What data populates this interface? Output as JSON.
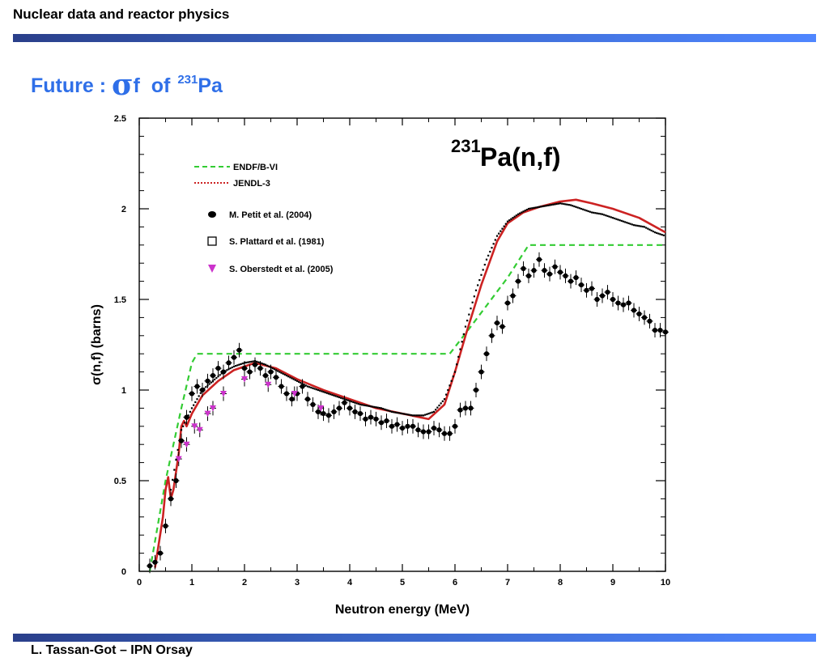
{
  "header": {
    "title": "Nuclear data and reactor physics"
  },
  "slide": {
    "title_prefix": "Future : ",
    "title_sigma": "σ",
    "title_sub": "f",
    "title_of": "of",
    "title_mass": "231",
    "title_element": "Pa"
  },
  "footer": {
    "text": "L. Tassan-Got – IPN Orsay"
  },
  "colors": {
    "band": "#3a66c9",
    "title": "#2f6fe8",
    "endf": "#33cc33",
    "jendl": "#cc2222",
    "oberstedt": "#cc33cc"
  },
  "chart_data": {
    "type": "scatter",
    "annotation": {
      "mass": "231",
      "reaction": "Pa(n,f)"
    },
    "xlabel": "Neutron energy (MeV)",
    "ylabel": "σ(n,f) (barns)",
    "xlim": [
      0,
      10
    ],
    "ylim": [
      0,
      2.5
    ],
    "xticks": [
      0,
      1,
      2,
      3,
      4,
      5,
      6,
      7,
      8,
      9,
      10
    ],
    "yticks": [
      0,
      0.5,
      1,
      1.5,
      2,
      2.5
    ],
    "xtick_labels": [
      "0",
      "1",
      "2",
      "3",
      "4",
      "5",
      "6",
      "7",
      "8",
      "9",
      "10"
    ],
    "ytick_labels": [
      "0",
      "0.5",
      "1",
      "1.5",
      "2",
      "2.5"
    ],
    "legend_position": "top-left",
    "series": [
      {
        "name": "ENDF/B-VI",
        "kind": "dashed-line",
        "color": "#33cc33",
        "x": [
          0.2,
          0.5,
          0.8,
          1.0,
          1.1,
          5.9,
          6.3,
          7.0,
          7.4,
          10.0
        ],
        "y": [
          0.0,
          0.5,
          0.9,
          1.15,
          1.2,
          1.2,
          1.35,
          1.62,
          1.8,
          1.8
        ]
      },
      {
        "name": "JENDL-3",
        "kind": "line",
        "color": "#cc2222",
        "x": [
          0.3,
          0.45,
          0.5,
          0.55,
          0.6,
          0.65,
          0.75,
          0.8,
          0.85,
          0.9,
          1.0,
          1.2,
          1.5,
          1.8,
          2.2,
          2.6,
          3.0,
          3.5,
          4.0,
          4.5,
          5.0,
          5.5,
          5.8,
          6.0,
          6.2,
          6.5,
          6.8,
          7.0,
          7.3,
          7.6,
          8.0,
          8.3,
          8.6,
          9.0,
          9.5,
          10.0
        ],
        "y": [
          0.02,
          0.3,
          0.45,
          0.52,
          0.4,
          0.45,
          0.65,
          0.8,
          0.83,
          0.8,
          0.87,
          0.97,
          1.05,
          1.11,
          1.15,
          1.12,
          1.06,
          1.0,
          0.95,
          0.9,
          0.87,
          0.84,
          0.92,
          1.1,
          1.3,
          1.58,
          1.82,
          1.92,
          1.98,
          2.01,
          2.04,
          2.05,
          2.03,
          2.0,
          1.95,
          1.87
        ]
      },
      {
        "name": "M. Petit et al.  (2004)",
        "kind": "points-with-errorbars",
        "marker": "circle",
        "color": "#000000",
        "x": [
          0.2,
          0.3,
          0.4,
          0.5,
          0.6,
          0.7,
          0.8,
          0.9,
          1.0,
          1.1,
          1.2,
          1.3,
          1.4,
          1.5,
          1.6,
          1.7,
          1.8,
          1.9,
          2.0,
          2.1,
          2.2,
          2.3,
          2.4,
          2.5,
          2.6,
          2.7,
          2.8,
          2.9,
          3.0,
          3.1,
          3.2,
          3.3,
          3.4,
          3.5,
          3.6,
          3.7,
          3.8,
          3.9,
          4.0,
          4.1,
          4.2,
          4.3,
          4.4,
          4.5,
          4.6,
          4.7,
          4.8,
          4.9,
          5.0,
          5.1,
          5.2,
          5.3,
          5.4,
          5.5,
          5.6,
          5.7,
          5.8,
          5.9,
          6.0,
          6.1,
          6.2,
          6.3,
          6.4,
          6.5,
          6.6,
          6.7,
          6.8,
          6.9,
          7.0,
          7.1,
          7.2,
          7.3,
          7.4,
          7.5,
          7.6,
          7.7,
          7.8,
          7.9,
          8.0,
          8.1,
          8.2,
          8.3,
          8.4,
          8.5,
          8.6,
          8.7,
          8.8,
          8.9,
          9.0,
          9.1,
          9.2,
          9.3,
          9.4,
          9.5,
          9.6,
          9.7,
          9.8,
          9.9,
          10.0
        ],
        "y": [
          0.03,
          0.05,
          0.1,
          0.25,
          0.4,
          0.5,
          0.72,
          0.85,
          0.98,
          1.02,
          1.0,
          1.05,
          1.08,
          1.12,
          1.1,
          1.15,
          1.18,
          1.22,
          1.12,
          1.1,
          1.14,
          1.12,
          1.08,
          1.1,
          1.07,
          1.02,
          0.98,
          0.95,
          0.98,
          1.02,
          0.95,
          0.92,
          0.88,
          0.87,
          0.86,
          0.88,
          0.9,
          0.93,
          0.9,
          0.88,
          0.87,
          0.84,
          0.85,
          0.84,
          0.82,
          0.83,
          0.8,
          0.81,
          0.79,
          0.8,
          0.8,
          0.78,
          0.77,
          0.77,
          0.79,
          0.78,
          0.76,
          0.76,
          0.8,
          0.89,
          0.9,
          0.9,
          1.0,
          1.1,
          1.2,
          1.3,
          1.37,
          1.35,
          1.48,
          1.52,
          1.6,
          1.67,
          1.63,
          1.66,
          1.72,
          1.66,
          1.64,
          1.68,
          1.65,
          1.63,
          1.6,
          1.62,
          1.58,
          1.55,
          1.56,
          1.5,
          1.52,
          1.54,
          1.5,
          1.48,
          1.47,
          1.48,
          1.44,
          1.42,
          1.4,
          1.38,
          1.33,
          1.33,
          1.32
        ],
        "error": 0.04
      },
      {
        "name": "S. Plattard et al. (1981)",
        "kind": "dense-points",
        "marker": "square",
        "color": "#000000",
        "x": [
          0.6,
          0.8,
          1.0,
          1.2,
          1.4,
          1.6,
          1.8,
          2.0,
          2.2,
          2.4,
          2.6,
          2.8,
          3.0,
          3.2,
          3.4,
          3.6,
          3.8,
          4.0,
          4.2,
          4.4,
          4.6,
          4.8,
          5.0,
          5.2,
          5.4,
          5.6,
          5.8,
          6.0,
          6.2,
          6.4,
          6.6,
          6.8,
          7.0,
          7.2,
          7.4,
          7.6,
          7.8,
          8.0,
          8.2,
          8.4,
          8.6,
          8.8,
          9.0,
          9.2,
          9.4,
          9.6,
          9.8,
          10.0
        ],
        "y": [
          0.45,
          0.78,
          0.9,
          1.0,
          1.05,
          1.1,
          1.13,
          1.15,
          1.16,
          1.14,
          1.11,
          1.08,
          1.05,
          1.02,
          1.0,
          0.98,
          0.96,
          0.94,
          0.92,
          0.91,
          0.9,
          0.88,
          0.87,
          0.86,
          0.86,
          0.88,
          0.95,
          1.1,
          1.35,
          1.55,
          1.72,
          1.85,
          1.93,
          1.97,
          2.0,
          2.01,
          2.02,
          2.03,
          2.02,
          2.0,
          1.98,
          1.97,
          1.95,
          1.93,
          1.91,
          1.9,
          1.87,
          1.85
        ]
      },
      {
        "name": "S. Oberstedt et al. (2005)",
        "kind": "points-with-errorbars",
        "marker": "triangle-down",
        "color": "#cc33cc",
        "x": [
          0.75,
          0.9,
          1.05,
          1.15,
          1.3,
          1.4,
          1.6,
          2.0,
          2.45,
          2.95,
          3.45
        ],
        "y": [
          0.62,
          0.7,
          0.8,
          0.78,
          0.87,
          0.9,
          0.98,
          1.06,
          1.03,
          0.98,
          0.9
        ],
        "error": 0.04
      }
    ]
  }
}
